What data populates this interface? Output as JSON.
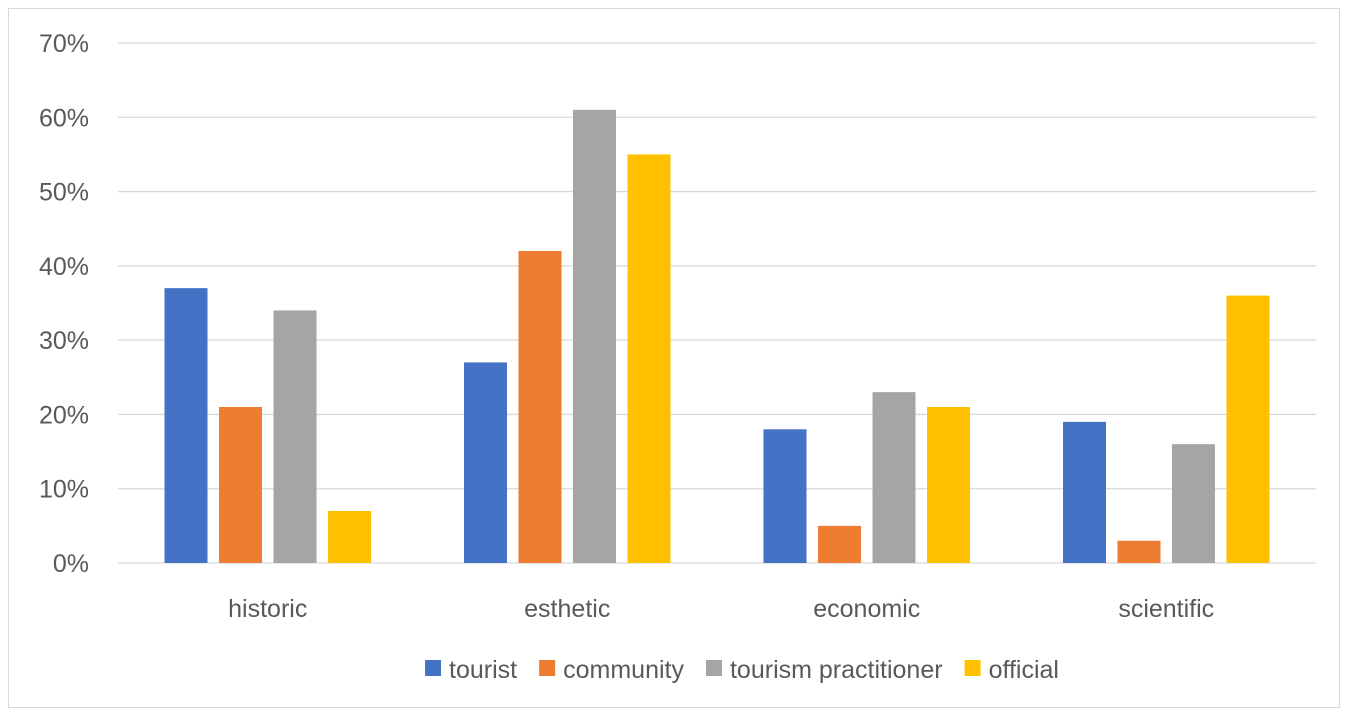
{
  "chart_data": {
    "type": "bar",
    "categories": [
      "historic",
      "esthetic",
      "economic",
      "scientific"
    ],
    "series": [
      {
        "name": "tourist",
        "color": "#4472C4",
        "values": [
          37,
          27,
          18,
          19
        ]
      },
      {
        "name": "community",
        "color": "#ED7D31",
        "values": [
          21,
          42,
          5,
          3
        ]
      },
      {
        "name": "tourism practitioner",
        "color": "#A5A5A5",
        "values": [
          34,
          61,
          23,
          16
        ]
      },
      {
        "name": "official",
        "color": "#FFC000",
        "values": [
          7,
          55,
          21,
          36
        ]
      }
    ],
    "y_ticks": [
      "0%",
      "10%",
      "20%",
      "30%",
      "40%",
      "50%",
      "60%",
      "70%"
    ],
    "ylim": [
      0,
      70
    ],
    "y_unit": "%",
    "grid": true,
    "legend_position": "bottom"
  }
}
